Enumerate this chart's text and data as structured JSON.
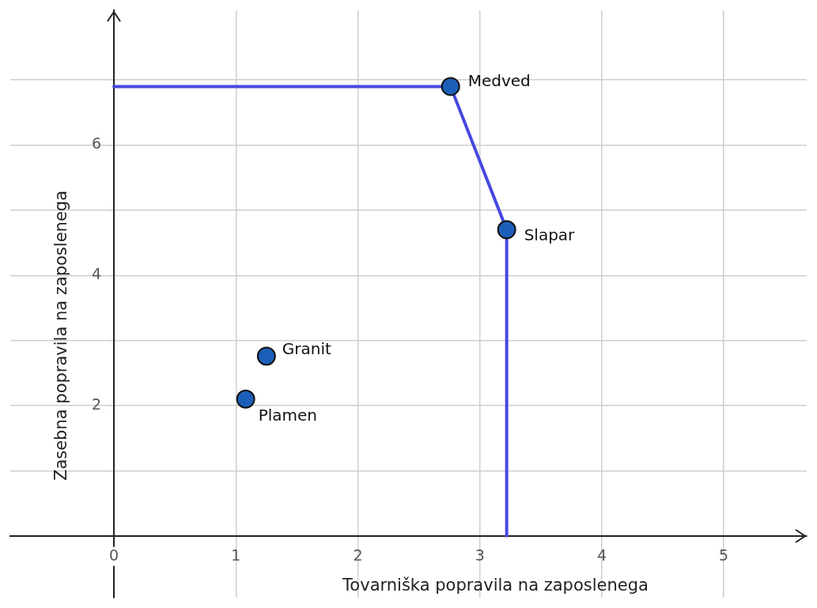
{
  "chart_data": {
    "type": "scatter",
    "xlabel": "Tovarniška popravila na zaposlenega",
    "ylabel": "Zasebna popravila na zaposlenega",
    "xlim": [
      -0.85,
      5.68
    ],
    "ylim": [
      -0.95,
      8.07
    ],
    "xticks": [
      0,
      1,
      2,
      3,
      4,
      5
    ],
    "yticks": [
      {
        "value": 0,
        "label": null
      },
      {
        "value": 1,
        "label": null
      },
      2,
      {
        "value": 3,
        "label": null
      },
      4,
      {
        "value": 5,
        "label": null
      },
      6,
      {
        "value": 7,
        "label": null
      }
    ],
    "grid": true,
    "series": [
      {
        "type": "line",
        "color": "#4747e0",
        "x": [
          0,
          2.76,
          3.22,
          3.22
        ],
        "values": [
          6.9,
          6.9,
          4.7,
          0
        ],
        "marker": "none",
        "line_style": "solid"
      },
      {
        "type": "scatter",
        "color": "#1c5fb8",
        "x": [
          2.76,
          3.22,
          1.25,
          1.08
        ],
        "values": [
          6.9,
          4.7,
          2.76,
          2.1
        ],
        "marker": "circle"
      }
    ],
    "annotations": [
      {
        "text": "Medved",
        "x": 2.76,
        "y": 6.9
      },
      {
        "text": "Slapar",
        "x": 3.22,
        "y": 4.7
      },
      {
        "text": "Granit",
        "x": 1.25,
        "y": 2.76
      },
      {
        "text": "Plamen",
        "x": 1.08,
        "y": 2.1
      }
    ]
  }
}
